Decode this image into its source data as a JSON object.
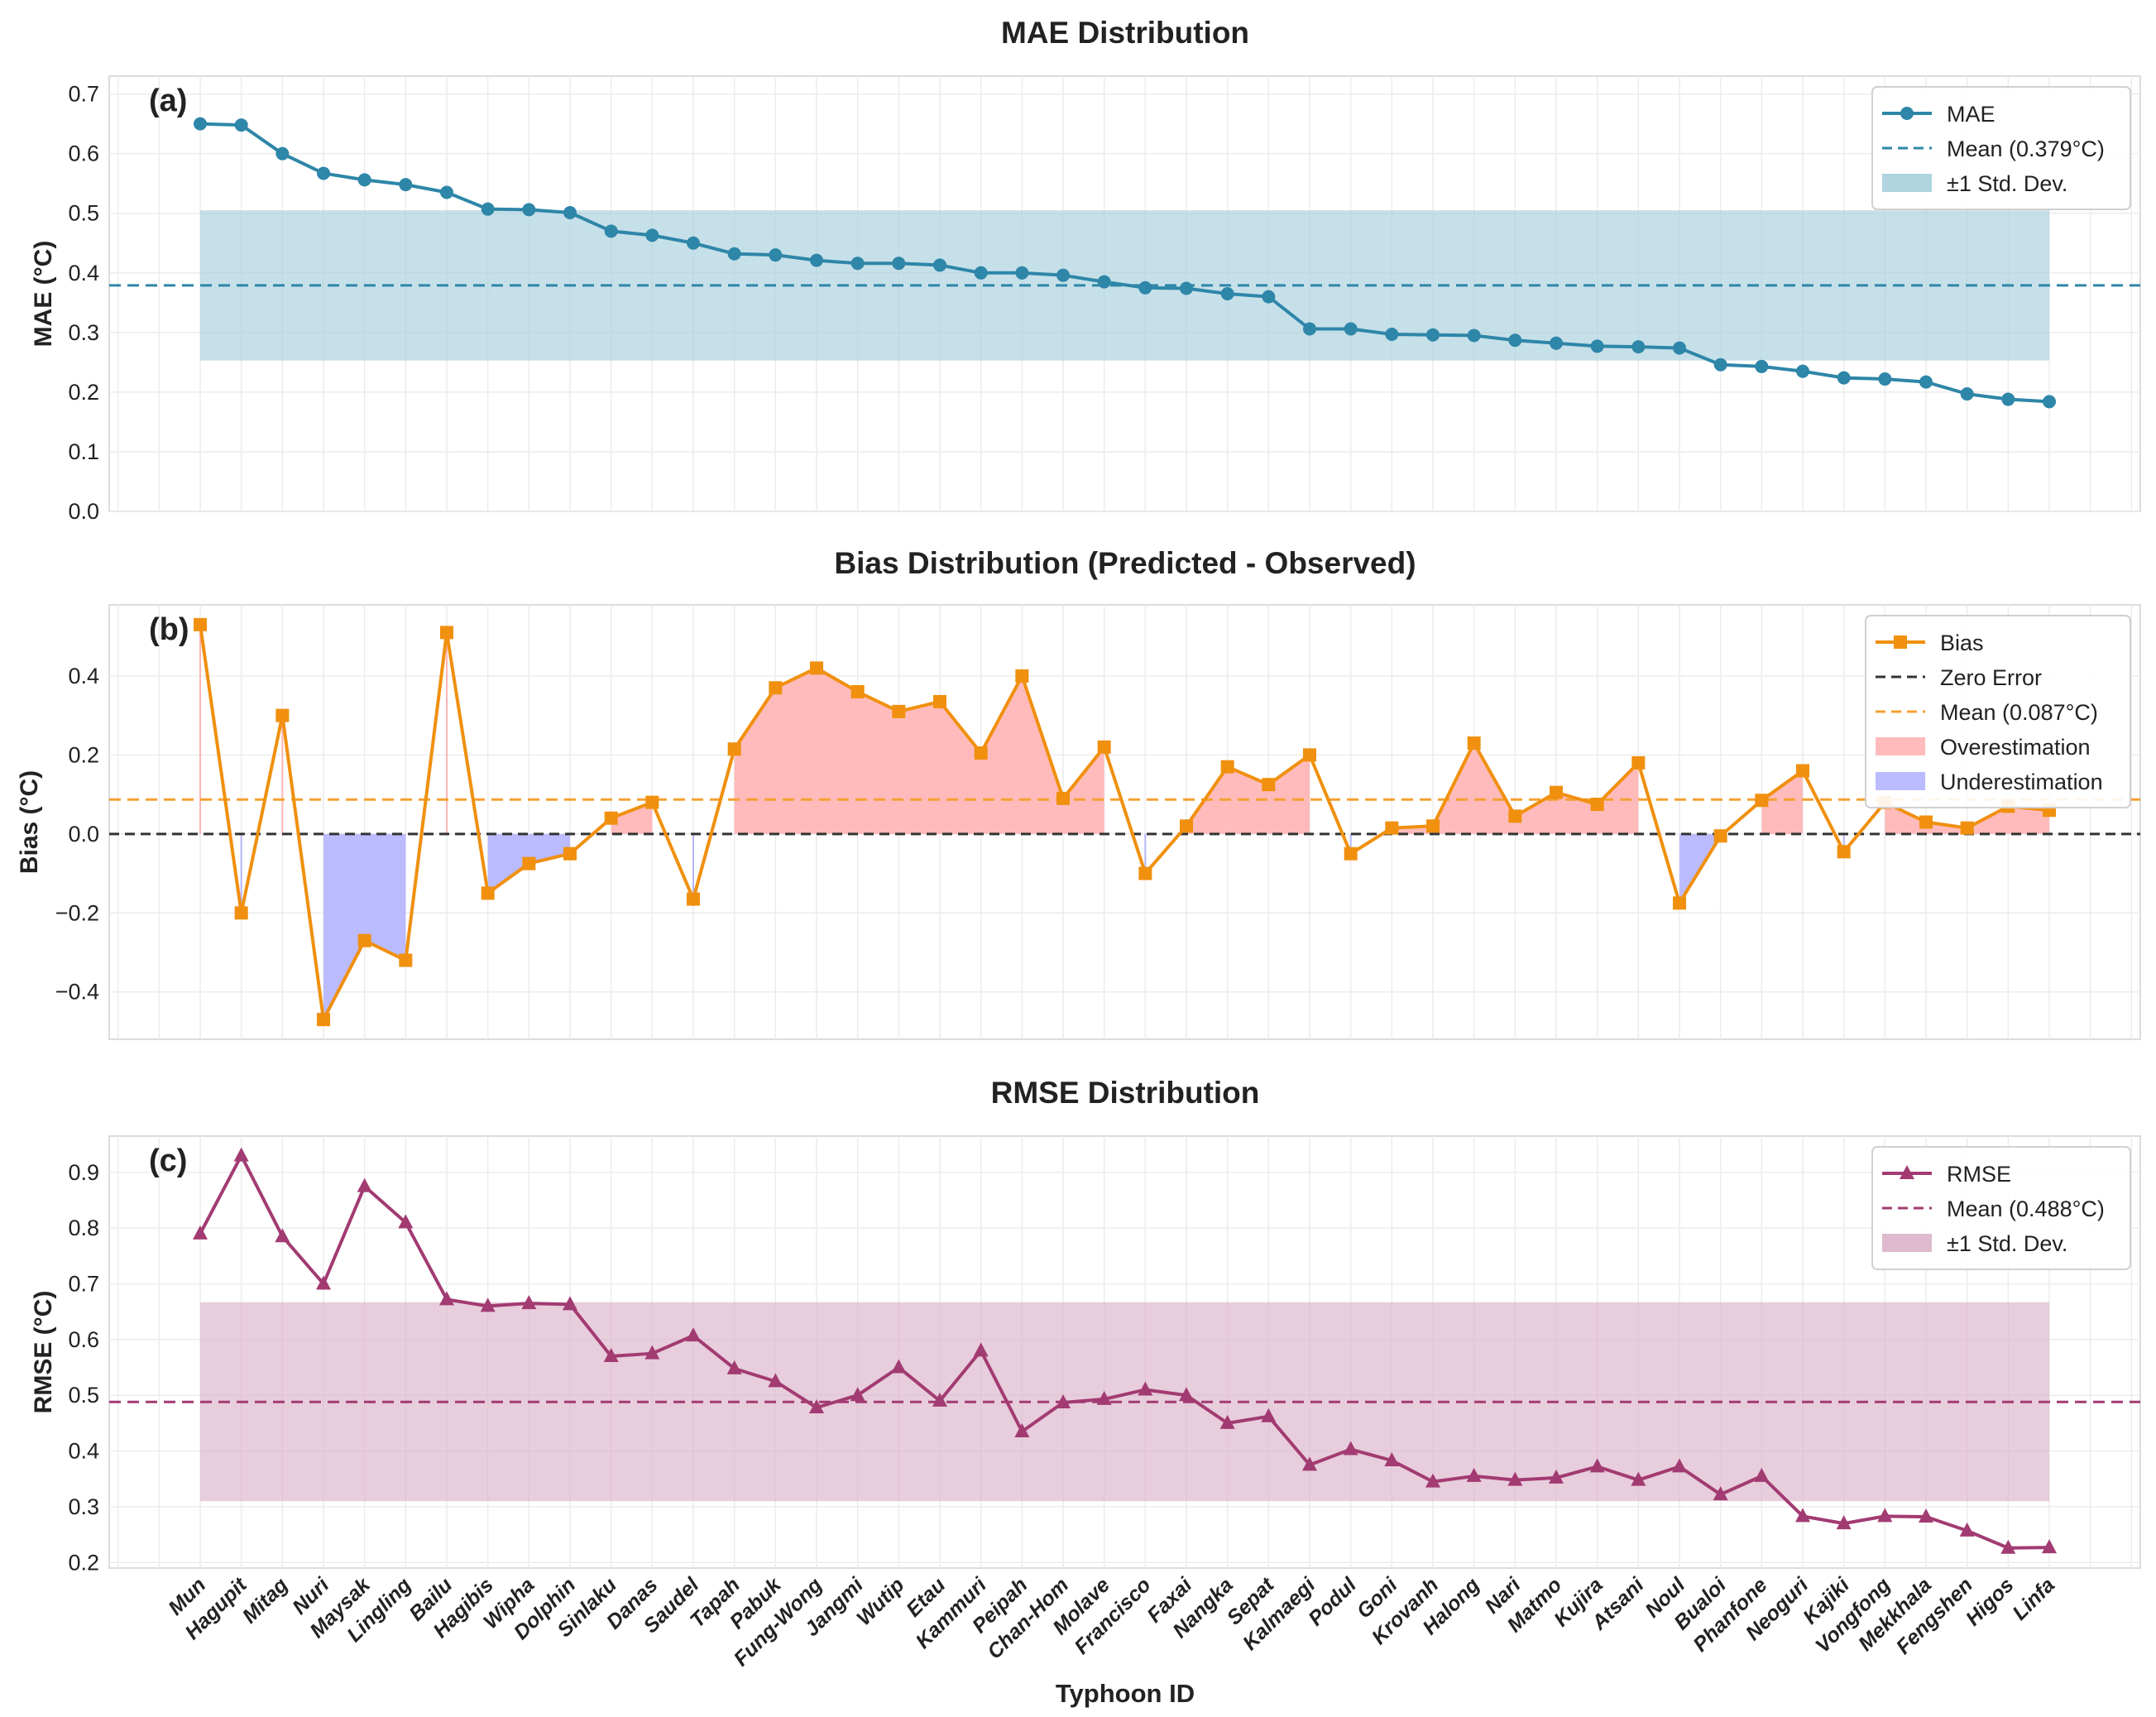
{
  "chart_data": [
    {
      "type": "line",
      "panel_label": "(a)",
      "title": "MAE Distribution",
      "xlabel": "",
      "ylabel": "MAE (°C)",
      "ylim": [
        0,
        0.73
      ],
      "yticks": [
        "0.0",
        "0.1",
        "0.2",
        "0.3",
        "0.4",
        "0.5",
        "0.6",
        "0.7"
      ],
      "grid": true,
      "legend_position": "top-right",
      "categories": [
        "Mun",
        "Hagupit",
        "Mitag",
        "Nuri",
        "Maysak",
        "Lingling",
        "Bailu",
        "Hagibis",
        "Wipha",
        "Dolphin",
        "Sinlaku",
        "Danas",
        "Saudel",
        "Tapah",
        "Pabuk",
        "Fung-Wong",
        "Jangmi",
        "Wutip",
        "Etau",
        "Kammuri",
        "Peipah",
        "Chan-Hom",
        "Molave",
        "Francisco",
        "Faxai",
        "Nangka",
        "Sepat",
        "Kalmaegi",
        "Podul",
        "Goni",
        "Krovanh",
        "Halong",
        "Nari",
        "Matmo",
        "Kujira",
        "Atsani",
        "Noul",
        "Bualoi",
        "Phanfone",
        "Neoguri",
        "Kajiki",
        "Vongfong",
        "Mekkhala",
        "Fengshen",
        "Higos",
        "Linfa"
      ],
      "series": [
        {
          "name": "MAE",
          "marker": "circle",
          "color": "#2e86a8",
          "values": [
            0.65,
            0.648,
            0.6,
            0.567,
            0.556,
            0.548,
            0.535,
            0.507,
            0.506,
            0.501,
            0.47,
            0.463,
            0.45,
            0.432,
            0.43,
            0.421,
            0.416,
            0.416,
            0.413,
            0.4,
            0.4,
            0.396,
            0.385,
            0.375,
            0.374,
            0.365,
            0.36,
            0.306,
            0.306,
            0.297,
            0.296,
            0.295,
            0.287,
            0.282,
            0.277,
            0.276,
            0.274,
            0.246,
            0.243,
            0.235,
            0.224,
            0.222,
            0.217,
            0.197,
            0.188,
            0.184
          ]
        }
      ],
      "mean": {
        "name": "Mean (0.379°C)",
        "value": 0.379,
        "color": "#2e86a8"
      },
      "std_band": {
        "name": "±1 Std. Dev.",
        "low": 0.253,
        "high": 0.505,
        "color": "#a7cfdd"
      }
    },
    {
      "type": "line",
      "panel_label": "(b)",
      "title": "Bias Distribution (Predicted - Observed)",
      "xlabel": "",
      "ylabel": "Bias (°C)",
      "ylim": [
        -0.52,
        0.58
      ],
      "yticks": [
        "−0.4",
        "−0.2",
        "0.0",
        "0.2",
        "0.4"
      ],
      "ytick_values": [
        -0.4,
        -0.2,
        0,
        0.2,
        0.4
      ],
      "grid": true,
      "legend_position": "top-right",
      "categories": [
        "Mun",
        "Hagupit",
        "Mitag",
        "Nuri",
        "Maysak",
        "Lingling",
        "Bailu",
        "Hagibis",
        "Wipha",
        "Dolphin",
        "Sinlaku",
        "Danas",
        "Saudel",
        "Tapah",
        "Pabuk",
        "Fung-Wong",
        "Jangmi",
        "Wutip",
        "Etau",
        "Kammuri",
        "Peipah",
        "Chan-Hom",
        "Molave",
        "Francisco",
        "Faxai",
        "Nangka",
        "Sepat",
        "Kalmaegi",
        "Podul",
        "Goni",
        "Krovanh",
        "Halong",
        "Nari",
        "Matmo",
        "Kujira",
        "Atsani",
        "Noul",
        "Bualoi",
        "Phanfone",
        "Neoguri",
        "Kajiki",
        "Vongfong",
        "Mekkhala",
        "Fengshen",
        "Higos",
        "Linfa"
      ],
      "series": [
        {
          "name": "Bias",
          "marker": "square",
          "color": "#f0900e",
          "values": [
            0.53,
            -0.2,
            0.3,
            -0.47,
            -0.27,
            -0.32,
            0.51,
            -0.15,
            -0.075,
            -0.05,
            0.04,
            0.08,
            -0.165,
            0.215,
            0.37,
            0.42,
            0.36,
            0.31,
            0.335,
            0.205,
            0.4,
            0.09,
            0.22,
            -0.1,
            0.02,
            0.17,
            0.125,
            0.2,
            -0.05,
            0.015,
            0.02,
            0.23,
            0.045,
            0.105,
            0.075,
            0.18,
            -0.175,
            -0.005,
            0.085,
            0.16,
            -0.045,
            0.08,
            0.03,
            0.015,
            0.07,
            0.06
          ]
        }
      ],
      "zero_line": {
        "name": "Zero Error",
        "value": 0,
        "color": "#333333"
      },
      "mean": {
        "name": "Mean (0.087°C)",
        "value": 0.087,
        "color": "#f5a030"
      },
      "over_fill": {
        "name": "Overestimation",
        "color": "#ffb4b4"
      },
      "under_fill": {
        "name": "Underestimation",
        "color": "#b4b4ff"
      }
    },
    {
      "type": "line",
      "panel_label": "(c)",
      "title": "RMSE Distribution",
      "xlabel": "Typhoon ID",
      "ylabel": "RMSE (°C)",
      "ylim": [
        0.19,
        0.965
      ],
      "yticks": [
        "0.2",
        "0.3",
        "0.4",
        "0.5",
        "0.6",
        "0.7",
        "0.8",
        "0.9"
      ],
      "grid": true,
      "legend_position": "top-right",
      "categories": [
        "Mun",
        "Hagupit",
        "Mitag",
        "Nuri",
        "Maysak",
        "Lingling",
        "Bailu",
        "Hagibis",
        "Wipha",
        "Dolphin",
        "Sinlaku",
        "Danas",
        "Saudel",
        "Tapah",
        "Pabuk",
        "Fung-Wong",
        "Jangmi",
        "Wutip",
        "Etau",
        "Kammuri",
        "Peipah",
        "Chan-Hom",
        "Molave",
        "Francisco",
        "Faxai",
        "Nangka",
        "Sepat",
        "Kalmaegi",
        "Podul",
        "Goni",
        "Krovanh",
        "Halong",
        "Nari",
        "Matmo",
        "Kujira",
        "Atsani",
        "Noul",
        "Bualoi",
        "Phanfone",
        "Neoguri",
        "Kajiki",
        "Vongfong",
        "Mekkhala",
        "Fengshen",
        "Higos",
        "Linfa"
      ],
      "series": [
        {
          "name": "RMSE",
          "marker": "triangle",
          "color": "#a23b72",
          "values": [
            0.79,
            0.93,
            0.785,
            0.7,
            0.875,
            0.81,
            0.672,
            0.66,
            0.665,
            0.663,
            0.57,
            0.575,
            0.607,
            0.548,
            0.525,
            0.478,
            0.5,
            0.55,
            0.49,
            0.58,
            0.435,
            0.487,
            0.493,
            0.51,
            0.5,
            0.45,
            0.462,
            0.375,
            0.403,
            0.383,
            0.345,
            0.355,
            0.348,
            0.352,
            0.372,
            0.348,
            0.372,
            0.322,
            0.355,
            0.283,
            0.27,
            0.283,
            0.282,
            0.257,
            0.226,
            0.227
          ]
        }
      ],
      "mean": {
        "name": "Mean (0.488°C)",
        "value": 0.488,
        "color": "#a23b72"
      },
      "std_band": {
        "name": "±1 Std. Dev.",
        "low": 0.31,
        "high": 0.667,
        "color": "#dcb2c9"
      }
    }
  ]
}
